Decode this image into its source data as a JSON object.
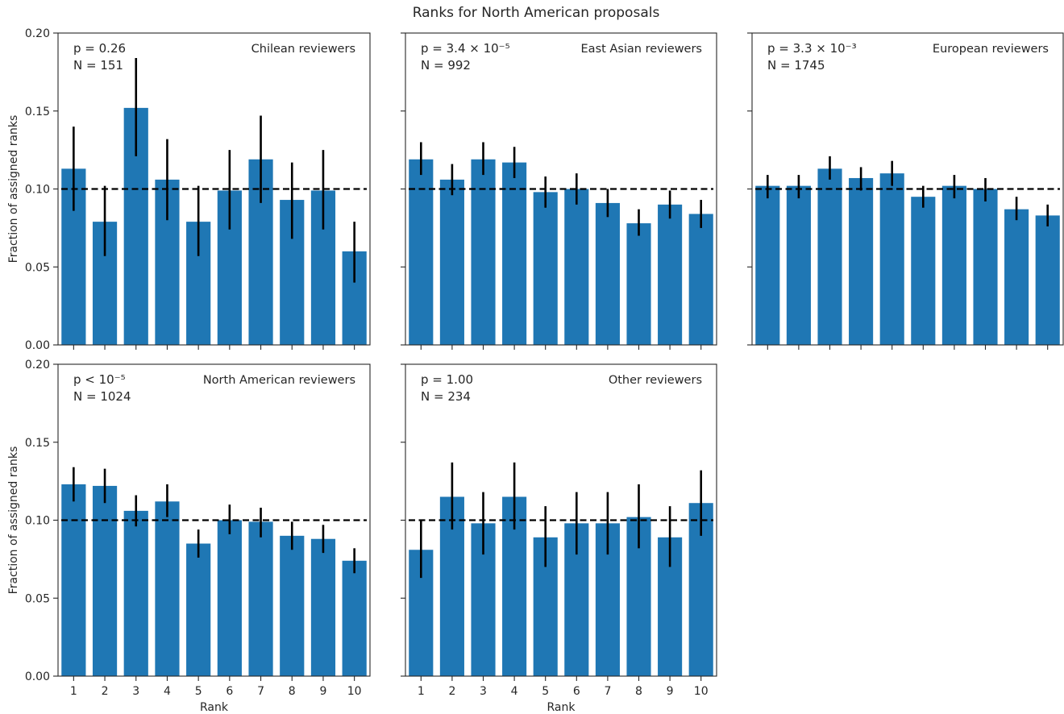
{
  "figure": {
    "title": "Ranks for North American proposals"
  },
  "style": {
    "bar_color": "#1f77b4",
    "errorbar_color": "#000000",
    "reference_line_color": "#000000"
  },
  "chart_data": [
    {
      "type": "bar",
      "panel": "Chilean reviewers",
      "p_label": "p = 0.26",
      "n_label": "N = 151",
      "categories": [
        "1",
        "2",
        "3",
        "4",
        "5",
        "6",
        "7",
        "8",
        "9",
        "10"
      ],
      "values": [
        0.113,
        0.079,
        0.152,
        0.106,
        0.079,
        0.099,
        0.119,
        0.093,
        0.099,
        0.06
      ],
      "error_low": [
        0.086,
        0.057,
        0.121,
        0.08,
        0.057,
        0.074,
        0.091,
        0.068,
        0.074,
        0.04
      ],
      "error_high": [
        0.14,
        0.102,
        0.184,
        0.132,
        0.102,
        0.125,
        0.147,
        0.117,
        0.125,
        0.079
      ],
      "reference_line": 0.1,
      "ylabel": "Fraction of assigned ranks",
      "xlabel": "",
      "ylim": [
        0,
        0.2
      ],
      "yticks": [
        "0.00",
        "0.05",
        "0.10",
        "0.15",
        "0.20"
      ]
    },
    {
      "type": "bar",
      "panel": "East Asian reviewers",
      "p_label": "p = 3.4 × 10⁻⁵",
      "n_label": "N = 992",
      "categories": [
        "1",
        "2",
        "3",
        "4",
        "5",
        "6",
        "7",
        "8",
        "9",
        "10"
      ],
      "values": [
        0.119,
        0.106,
        0.119,
        0.117,
        0.098,
        0.1,
        0.091,
        0.078,
        0.09,
        0.084
      ],
      "error_low": [
        0.109,
        0.096,
        0.109,
        0.107,
        0.088,
        0.09,
        0.082,
        0.07,
        0.081,
        0.075
      ],
      "error_high": [
        0.13,
        0.116,
        0.13,
        0.127,
        0.108,
        0.11,
        0.1,
        0.087,
        0.099,
        0.093
      ],
      "reference_line": 0.1,
      "ylabel": "",
      "xlabel": "",
      "ylim": [
        0,
        0.2
      ]
    },
    {
      "type": "bar",
      "panel": "European reviewers",
      "p_label": "p = 3.3 × 10⁻³",
      "n_label": "N = 1745",
      "categories": [
        "1",
        "2",
        "3",
        "4",
        "5",
        "6",
        "7",
        "8",
        "9",
        "10"
      ],
      "values": [
        0.102,
        0.102,
        0.113,
        0.107,
        0.11,
        0.095,
        0.102,
        0.1,
        0.087,
        0.083
      ],
      "error_low": [
        0.094,
        0.094,
        0.106,
        0.099,
        0.102,
        0.088,
        0.094,
        0.092,
        0.08,
        0.076
      ],
      "error_high": [
        0.109,
        0.109,
        0.121,
        0.114,
        0.118,
        0.102,
        0.109,
        0.107,
        0.095,
        0.09
      ],
      "reference_line": 0.1,
      "ylabel": "",
      "xlabel": "",
      "ylim": [
        0,
        0.2
      ]
    },
    {
      "type": "bar",
      "panel": "North American reviewers",
      "p_label": "p < 10⁻⁵",
      "n_label": "N = 1024",
      "categories": [
        "1",
        "2",
        "3",
        "4",
        "5",
        "6",
        "7",
        "8",
        "9",
        "10"
      ],
      "values": [
        0.123,
        0.122,
        0.106,
        0.112,
        0.085,
        0.1,
        0.099,
        0.09,
        0.088,
        0.074
      ],
      "error_low": [
        0.112,
        0.111,
        0.096,
        0.102,
        0.076,
        0.091,
        0.089,
        0.081,
        0.079,
        0.066
      ],
      "error_high": [
        0.134,
        0.133,
        0.116,
        0.123,
        0.094,
        0.11,
        0.108,
        0.099,
        0.097,
        0.082
      ],
      "reference_line": 0.1,
      "ylabel": "Fraction of assigned ranks",
      "xlabel": "Rank",
      "ylim": [
        0,
        0.2
      ],
      "yticks": [
        "0.00",
        "0.05",
        "0.10",
        "0.15",
        "0.20"
      ],
      "xticks": [
        "1",
        "2",
        "3",
        "4",
        "5",
        "6",
        "7",
        "8",
        "9",
        "10"
      ]
    },
    {
      "type": "bar",
      "panel": "Other reviewers",
      "p_label": "p = 1.00",
      "n_label": "N = 234",
      "categories": [
        "1",
        "2",
        "3",
        "4",
        "5",
        "6",
        "7",
        "8",
        "9",
        "10"
      ],
      "values": [
        0.081,
        0.115,
        0.098,
        0.115,
        0.089,
        0.098,
        0.098,
        0.102,
        0.089,
        0.111
      ],
      "error_low": [
        0.063,
        0.094,
        0.078,
        0.094,
        0.07,
        0.078,
        0.078,
        0.082,
        0.07,
        0.09
      ],
      "error_high": [
        0.1,
        0.137,
        0.118,
        0.137,
        0.109,
        0.118,
        0.118,
        0.123,
        0.109,
        0.132
      ],
      "reference_line": 0.1,
      "ylabel": "",
      "xlabel": "Rank",
      "ylim": [
        0,
        0.2
      ],
      "xticks": [
        "1",
        "2",
        "3",
        "4",
        "5",
        "6",
        "7",
        "8",
        "9",
        "10"
      ]
    }
  ]
}
